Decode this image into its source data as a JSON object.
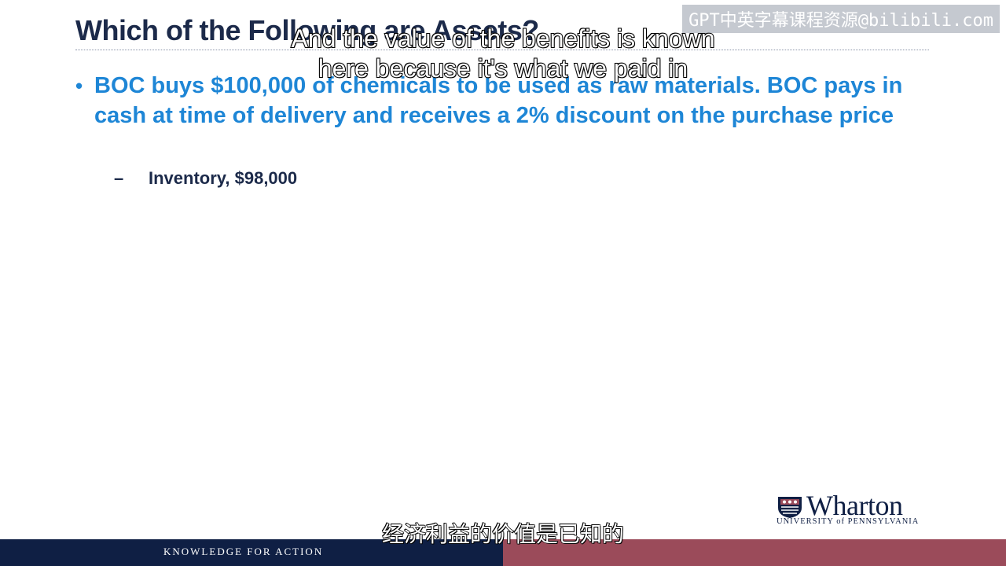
{
  "slide": {
    "title": "Which of the Following are Assets?",
    "bullet_marker": "•",
    "bullet_text": "BOC buys $100,000 of chemicals to be used as raw materials.  BOC pays in cash at time of delivery and receives a 2% discount on the purchase price",
    "sub_dash": "–",
    "sub_bullet_text": "Inventory, $98,000"
  },
  "captions": {
    "english_line1": "And the value of the benefits is known",
    "english_line2": "here because it's what we paid in",
    "chinese": "经济利益的价值是已知的"
  },
  "watermark": "GPT中英字幕课程资源@bilibili.com",
  "footer": {
    "tagline": "KNOWLEDGE FOR ACTION"
  },
  "logo": {
    "name": "Wharton",
    "subtitle": "UNIVERSITY of PENNSYLVANIA"
  },
  "colors": {
    "navy": "#0f1f44",
    "bullet_blue": "#1e86d6",
    "maroon": "#9b4b5a"
  }
}
